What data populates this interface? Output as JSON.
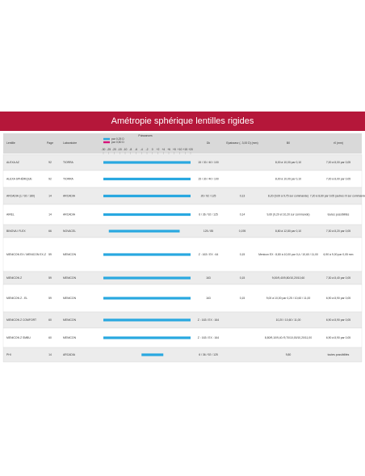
{
  "header": {
    "title": "Amétropie sphérique lentilles rigides"
  },
  "table": {
    "columns": [
      "Lentille",
      "Page",
      "Laboratoire",
      "Puissances",
      "Dk",
      "Epaisseur (- 3,00 D) (mm)",
      "B0",
      "r0 (mm)"
    ],
    "legend": [
      "par 0,25 D",
      "par 0,50 D"
    ],
    "scale": [
      "-30",
      "-25",
      "-20",
      "-15",
      "-10",
      "-8",
      "-6",
      "-4",
      "-2",
      "0",
      "+2",
      "+4",
      "+6",
      "+8",
      "+10",
      "+15",
      "+20"
    ],
    "rows": [
      [
        "ALEXA AZ",
        "92",
        "TIORRA",
        "15 / 30 / 40 / 100",
        "",
        "8,00 à 10,00 par 0,10",
        "7,00 à 8,00 par 0,05"
      ],
      [
        "ALEXA SPHÉRIQUE",
        "92",
        "TIORRA",
        "15 / 30 / 40 / 100",
        "",
        "8,00 à 10,00 par 0,10",
        "7,00 à 8,00 par 0,05"
      ],
      [
        "ARCADIA (1 / 92 / 180)",
        "14",
        "ARCADIA",
        "26 / 92 / 125",
        "0,13",
        "8,20 (9,00 à 9,75 sur commande)",
        "7,20 à 8,60 par 0,05 (autres r0 sur commande)"
      ],
      [
        "AIREL",
        "14",
        "ARCADIA",
        "6 / 36 / 92 / 125",
        "0,14",
        "9,60 (9,20 et 10,20 sur commande)",
        "toutes possibilités"
      ],
      [
        "BINOVA I FLEX",
        "66",
        "NOVACEL",
        "125 / 85",
        "0,195",
        "8,80 à 12,80 par 0,10",
        "7,30 à 8,20 par 0,05"
      ],
      [
        "MENICON EX / MENICON EX-Z",
        "59",
        "MENICON",
        "Z : 163 / EX : 64",
        "0,15",
        "Menicon EX : 8,80 à 10,00 par 0,4 / 10,60 / 11,00",
        "6,90 à 9,00 par 0,05 mm"
      ],
      [
        "MENICON Z",
        "59",
        "MENICON",
        "163",
        "0,15",
        "9,00/9,40/9,80/10,20/10,60",
        "7,30 à 8,40 par 0,05"
      ],
      [
        "MENICON Z - EL",
        "59",
        "MENICON",
        "163",
        "0,15",
        "9,00 à 10,00 par 0,25 / 10,60 / 11,00",
        "6,90 à 8,90 par 0,05"
      ],
      [
        "MENICON Z COMFORT",
        "60",
        "MENICON",
        "Z : 163 / EX : 164",
        "",
        "10,20 / 10,60 / 11,00",
        "6,90 à 8,90 par 0,05"
      ],
      [
        "MENICON Z SMBU",
        "60",
        "MENICON",
        "Z : 163 / EX : 164",
        "",
        "8,80/9,10/9,40 /9,70/10,00/10,20/11,00",
        "6,90 à 8,90 par 0,05"
      ],
      [
        "PHI",
        "14",
        "ARCADIA",
        "6 / 36 / 92 / 125",
        "",
        "9,80",
        "toutes possibilités"
      ]
    ]
  }
}
